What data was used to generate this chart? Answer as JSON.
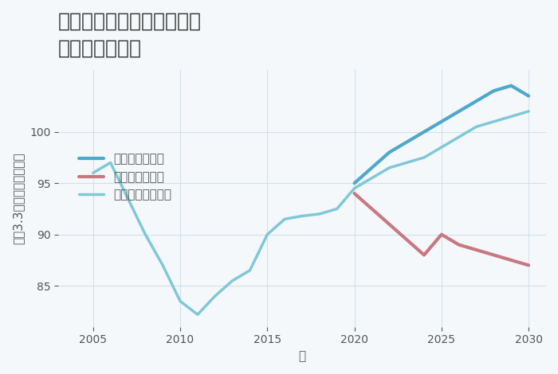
{
  "title": "大阪府堺市堺区文珠橋通の\n土地の価格推移",
  "xlabel": "年",
  "ylabel": "坪（3.3㎡）単価（万円）",
  "background_color": "#f5f8fa",
  "plot_background": "#f5f8fa",
  "grid_color": "#c8dce8",
  "normal_scenario": {
    "label": "ノーマルシナリオ",
    "color": "#7fc8d8",
    "linewidth": 2.5,
    "x": [
      2005,
      2006,
      2007,
      2008,
      2009,
      2010,
      2011,
      2012,
      2013,
      2014,
      2015,
      2016,
      2017,
      2018,
      2019,
      2020,
      2021,
      2022,
      2023,
      2024,
      2025,
      2026,
      2027,
      2028,
      2029,
      2030
    ],
    "y": [
      96,
      97,
      93.5,
      90,
      87,
      83.5,
      82.2,
      84,
      85.5,
      86.5,
      90,
      91.5,
      91.8,
      92.0,
      92.5,
      94.5,
      95.5,
      96.5,
      97.0,
      97.5,
      98.5,
      99.5,
      100.5,
      101.0,
      101.5,
      102.0
    ]
  },
  "good_scenario": {
    "label": "グッドシナリオ",
    "color": "#4fa8cc",
    "linewidth": 3.0,
    "x": [
      2020,
      2021,
      2022,
      2023,
      2024,
      2025,
      2026,
      2027,
      2028,
      2029,
      2030
    ],
    "y": [
      95.0,
      96.5,
      98.0,
      99.0,
      100.0,
      101.0,
      102.0,
      103.0,
      104.0,
      104.5,
      103.5
    ]
  },
  "bad_scenario": {
    "label": "バッドシナリオ",
    "color": "#c87880",
    "linewidth": 3.0,
    "x": [
      2020,
      2021,
      2022,
      2023,
      2024,
      2025,
      2026,
      2027,
      2028,
      2029,
      2030
    ],
    "y": [
      94.0,
      92.5,
      91.0,
      89.5,
      88.0,
      90.0,
      89.0,
      88.5,
      88.0,
      87.5,
      87.0
    ]
  },
  "ylim": [
    81,
    106
  ],
  "yticks": [
    85,
    90,
    95,
    100
  ],
  "xticks": [
    2005,
    2010,
    2015,
    2020,
    2025,
    2030
  ],
  "title_fontsize": 18,
  "axis_label_fontsize": 11,
  "tick_fontsize": 10,
  "legend_fontsize": 11
}
